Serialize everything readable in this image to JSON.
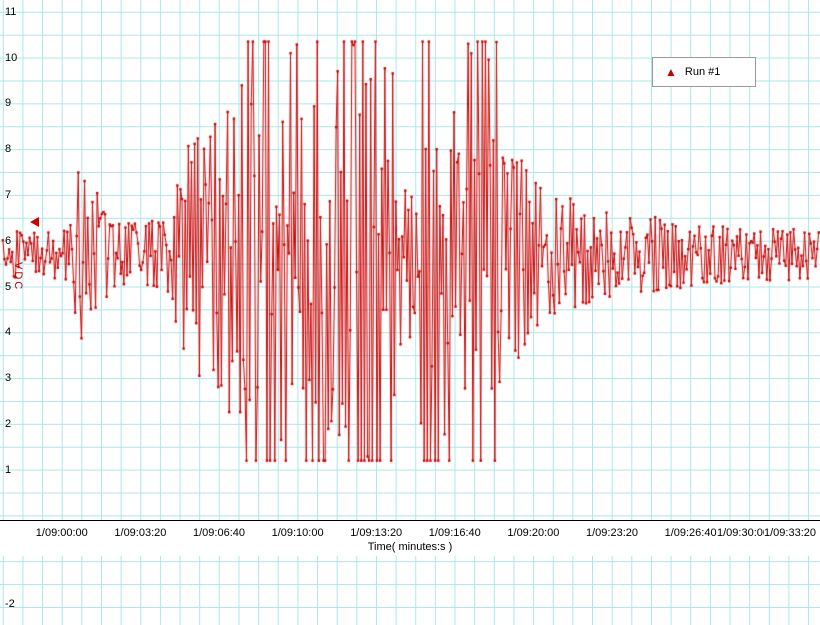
{
  "legend": {
    "label": "Run #1",
    "marker_color": "#cc0000"
  },
  "y_axis": {
    "label": "VDC",
    "ticks": [
      "11",
      "10",
      "9",
      "8",
      "7",
      "6",
      "5",
      "4",
      "3",
      "2",
      "1"
    ]
  },
  "x_axis": {
    "title": "Time( minutes:s )",
    "ticks": [
      "1/09:00:00",
      "1/09:03:20",
      "1/09:06:40",
      "1/09:10:00",
      "1/09:13:20",
      "1/09:16:40",
      "1/09:20:00",
      "1/09:23:20",
      "1/09:26:40",
      "1/09:30:00",
      "1/09:33:20"
    ]
  },
  "second_pane": {
    "ticks": [
      "-2"
    ]
  },
  "colors": {
    "trace": "#cc0000",
    "grid": "#ace8e8",
    "axis_text": "#000000",
    "legend_border": "#9a9a9a"
  },
  "chart_data": {
    "type": "line",
    "title": "",
    "xlabel": "Time( minutes:s )",
    "ylabel": "VDC",
    "series": [
      {
        "name": "Run #1",
        "color": "#cc0000",
        "marker": "dot"
      }
    ],
    "x_tick_labels": [
      "1/09:00:00",
      "1/09:03:20",
      "1/09:06:40",
      "1/09:10:00",
      "1/09:13:20",
      "1/09:16:40",
      "1/09:20:00",
      "1/09:23:20",
      "1/09:26:40",
      "1/09:30:00",
      "1/09:33:20"
    ],
    "x_tick_interval_s": 200,
    "x_range_s": [
      -150,
      1928
    ],
    "ylim_visible": [
      1,
      11
    ],
    "grid": true,
    "legend_position": "top-right",
    "baseline_v": 5.7,
    "clip_v": [
      1.2,
      10.35
    ],
    "sample_interval_s": 4,
    "seed": 20,
    "noise_envelope_t_amp": [
      [
        -160,
        0.55
      ],
      [
        0,
        0.55
      ],
      [
        20,
        0.6
      ],
      [
        32,
        1.4
      ],
      [
        45,
        2.3
      ],
      [
        60,
        1.7
      ],
      [
        80,
        1.1
      ],
      [
        95,
        1.5
      ],
      [
        112,
        0.95
      ],
      [
        140,
        0.75
      ],
      [
        185,
        0.7
      ],
      [
        235,
        0.75
      ],
      [
        275,
        1.0
      ],
      [
        300,
        1.8
      ],
      [
        315,
        2.6
      ],
      [
        330,
        2.2
      ],
      [
        352,
        2.9
      ],
      [
        372,
        2.5
      ],
      [
        390,
        3.3
      ],
      [
        410,
        2.9
      ],
      [
        428,
        3.9
      ],
      [
        446,
        3.4
      ],
      [
        458,
        4.3
      ],
      [
        465,
        6.0
      ],
      [
        688,
        6.0
      ],
      [
        697,
        2.4
      ],
      [
        706,
        6.0
      ],
      [
        845,
        6.0
      ],
      [
        856,
        2.4
      ],
      [
        880,
        1.9
      ],
      [
        904,
        2.4
      ],
      [
        912,
        6.0
      ],
      [
        990,
        6.0
      ],
      [
        1000,
        2.6
      ],
      [
        1020,
        2.1
      ],
      [
        1036,
        5.5
      ],
      [
        1105,
        5.5
      ],
      [
        1116,
        2.3
      ],
      [
        1140,
        2.0
      ],
      [
        1165,
        2.3
      ],
      [
        1200,
        1.8
      ],
      [
        1250,
        1.4
      ],
      [
        1320,
        1.15
      ],
      [
        1400,
        1.0
      ],
      [
        1500,
        0.85
      ],
      [
        1600,
        0.7
      ],
      [
        1750,
        0.58
      ],
      [
        1900,
        0.55
      ],
      [
        2040,
        0.5
      ]
    ]
  }
}
